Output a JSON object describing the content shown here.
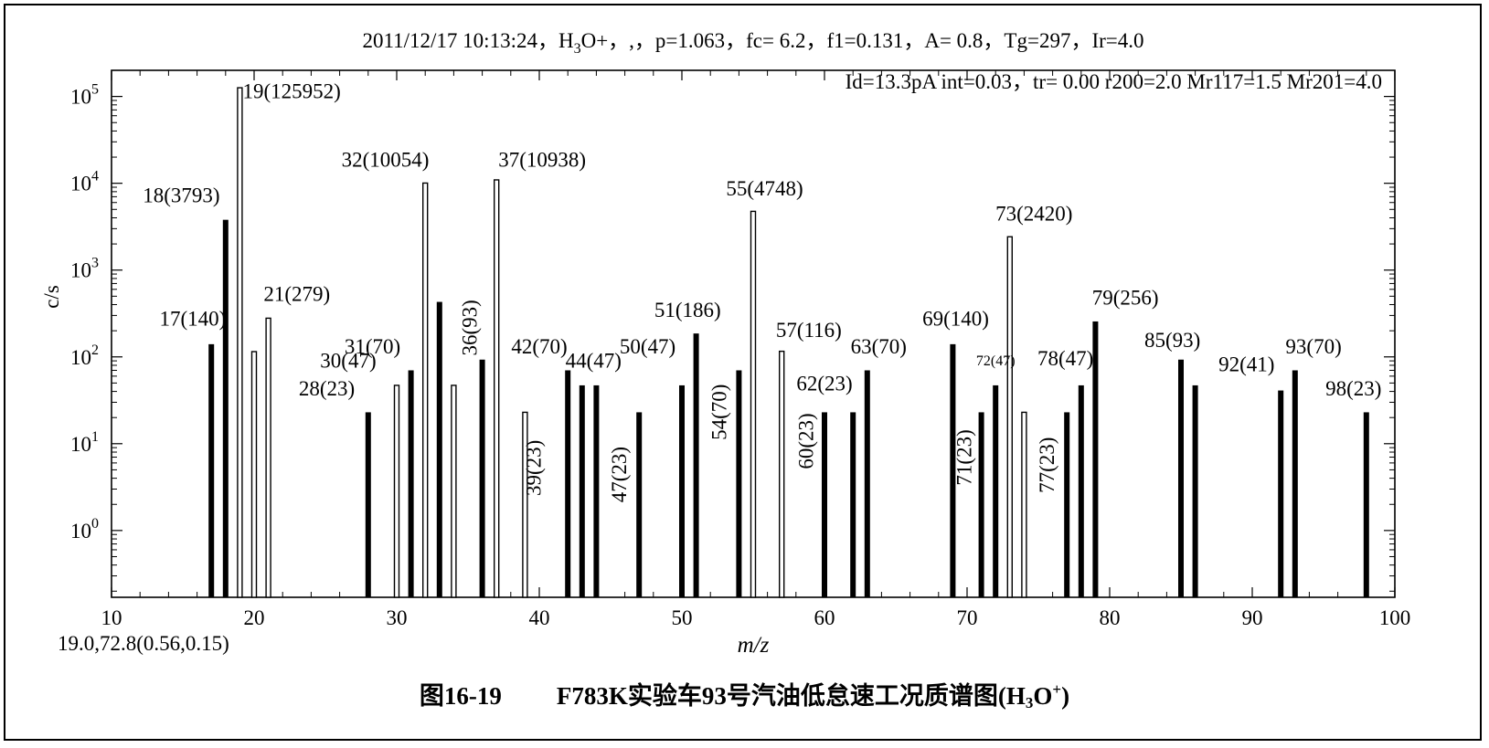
{
  "chart_data": {
    "type": "bar",
    "header_line1_parts": [
      "2011/12/17 10:13:24，H",
      "3",
      "O+，,，p=1.063，fc= 6.2，f1=0.131，A= 0.8，Tg=297，Ir=4.0"
    ],
    "header_line2": "Id=13.3pA int=0.03，tr= 0.00 r200=2.0 Mr117=1.5 Mr201=4.0",
    "xlabel": "m/z",
    "ylabel": "c/s",
    "yscale": "log",
    "xlim": [
      10,
      100
    ],
    "ylim": [
      0.17,
      200000
    ],
    "x_ticks": [
      10,
      20,
      30,
      40,
      50,
      60,
      70,
      80,
      90,
      100
    ],
    "y_ticks": [
      {
        "base": "10",
        "exp": "0",
        "value": 1
      },
      {
        "base": "10",
        "exp": "1",
        "value": 10
      },
      {
        "base": "10",
        "exp": "2",
        "value": 100
      },
      {
        "base": "10",
        "exp": "3",
        "value": 1000
      },
      {
        "base": "10",
        "exp": "4",
        "value": 10000
      },
      {
        "base": "10",
        "exp": "5",
        "value": 100000
      }
    ],
    "footnote": "19.0,72.8(0.56,0.15)",
    "peaks": [
      {
        "mz": 17,
        "value": 140,
        "style": "filled",
        "label": "17(140)",
        "lx": 15.7,
        "lv": 230,
        "anchor": "middle",
        "size": 23
      },
      {
        "mz": 18,
        "value": 3793,
        "style": "filled",
        "label": "18(3793)",
        "lx": 14.9,
        "lv": 6000,
        "anchor": "middle",
        "size": 23
      },
      {
        "mz": 19,
        "value": 125952,
        "style": "hollow",
        "label": "19(125952)",
        "lx": 19.2,
        "lv": 95000,
        "anchor": "start",
        "size": 23
      },
      {
        "mz": 20,
        "value": 115,
        "style": "hollow"
      },
      {
        "mz": 21,
        "value": 279,
        "style": "hollow",
        "label": "21(279)",
        "lx": 23.0,
        "lv": 440,
        "anchor": "middle",
        "size": 23
      },
      {
        "mz": 28,
        "value": 23,
        "style": "filled",
        "label": "28(23)",
        "lx": 25.1,
        "lv": 36,
        "anchor": "middle",
        "size": 23
      },
      {
        "mz": 30,
        "value": 47,
        "style": "hollow",
        "label": "30(47)",
        "lx": 26.6,
        "lv": 75,
        "anchor": "middle",
        "size": 23
      },
      {
        "mz": 31,
        "value": 70,
        "style": "filled",
        "label": "31(70)",
        "lx": 28.3,
        "lv": 110,
        "anchor": "middle",
        "size": 23
      },
      {
        "mz": 32,
        "value": 10054,
        "style": "hollow",
        "label": "32(10054)",
        "lx": 29.2,
        "lv": 15500,
        "anchor": "middle",
        "size": 23
      },
      {
        "mz": 33,
        "value": 430,
        "style": "filled"
      },
      {
        "mz": 34,
        "value": 47,
        "style": "hollow"
      },
      {
        "mz": 36,
        "value": 93,
        "style": "filled",
        "label": "36(93)",
        "lx": 35.6,
        "lv": 103,
        "anchor": "start",
        "size": 23,
        "rot": -90
      },
      {
        "mz": 37,
        "value": 10938,
        "style": "hollow",
        "label": "37(10938)",
        "lx": 40.2,
        "lv": 15500,
        "anchor": "middle",
        "size": 23
      },
      {
        "mz": 39,
        "value": 23,
        "style": "hollow",
        "label": "39(23)",
        "lx": 40.1,
        "lv": 2.5,
        "anchor": "start",
        "size": 23,
        "rot": -90
      },
      {
        "mz": 42,
        "value": 70,
        "style": "filled",
        "label": "42(70)",
        "lx": 40.0,
        "lv": 110,
        "anchor": "middle",
        "size": 23
      },
      {
        "mz": 43,
        "value": 47,
        "style": "filled"
      },
      {
        "mz": 44,
        "value": 47,
        "style": "filled",
        "label": "44(47)",
        "lx": 43.8,
        "lv": 75,
        "anchor": "middle",
        "size": 23
      },
      {
        "mz": 47,
        "value": 23,
        "style": "filled",
        "label": "47(23)",
        "lx": 46.1,
        "lv": 2.1,
        "anchor": "start",
        "size": 23,
        "rot": -90
      },
      {
        "mz": 50,
        "value": 47,
        "style": "filled",
        "label": "50(47)",
        "lx": 47.6,
        "lv": 110,
        "anchor": "middle",
        "size": 23
      },
      {
        "mz": 51,
        "value": 186,
        "style": "filled",
        "label": "51(186)",
        "lx": 50.4,
        "lv": 290,
        "anchor": "middle",
        "size": 23
      },
      {
        "mz": 54,
        "value": 70,
        "style": "filled",
        "label": "54(70)",
        "lx": 53.1,
        "lv": 11,
        "anchor": "start",
        "size": 23,
        "rot": -90
      },
      {
        "mz": 55,
        "value": 4748,
        "style": "hollow",
        "label": "55(4748)",
        "lx": 55.8,
        "lv": 7200,
        "anchor": "middle",
        "size": 23
      },
      {
        "mz": 57,
        "value": 116,
        "style": "hollow",
        "label": "57(116)",
        "lx": 58.9,
        "lv": 170,
        "anchor": "middle",
        "size": 23
      },
      {
        "mz": 60,
        "value": 23,
        "style": "filled",
        "label": "60(23)",
        "lx": 59.2,
        "lv": 5.1,
        "anchor": "start",
        "size": 23,
        "rot": -90
      },
      {
        "mz": 62,
        "value": 23,
        "style": "filled",
        "label": "62(23)",
        "lx": 60.0,
        "lv": 41,
        "anchor": "middle",
        "size": 23
      },
      {
        "mz": 63,
        "value": 70,
        "style": "filled",
        "label": "63(70)",
        "lx": 63.8,
        "lv": 110,
        "anchor": "middle",
        "size": 23
      },
      {
        "mz": 69,
        "value": 140,
        "style": "filled",
        "label": "69(140)",
        "lx": 69.2,
        "lv": 230,
        "anchor": "middle",
        "size": 23
      },
      {
        "mz": 71,
        "value": 23,
        "style": "filled",
        "label": "71(23)",
        "lx": 70.3,
        "lv": 3.3,
        "anchor": "start",
        "size": 23,
        "rot": -90
      },
      {
        "mz": 72,
        "value": 47,
        "style": "filled",
        "label": "72(47)",
        "lx": 72.0,
        "lv": 80,
        "anchor": "middle",
        "size": 16
      },
      {
        "mz": 73,
        "value": 2420,
        "style": "hollow",
        "label": "73(2420)",
        "lx": 74.7,
        "lv": 3700,
        "anchor": "middle",
        "size": 23
      },
      {
        "mz": 74,
        "value": 23,
        "style": "hollow"
      },
      {
        "mz": 77,
        "value": 23,
        "style": "filled",
        "label": "77(23)",
        "lx": 76.1,
        "lv": 2.7,
        "anchor": "start",
        "size": 23,
        "rot": -90
      },
      {
        "mz": 78,
        "value": 47,
        "style": "filled",
        "label": "78(47)",
        "lx": 76.9,
        "lv": 80,
        "anchor": "middle",
        "size": 23
      },
      {
        "mz": 79,
        "value": 256,
        "style": "filled",
        "label": "79(256)",
        "lx": 81.1,
        "lv": 400,
        "anchor": "middle",
        "size": 23
      },
      {
        "mz": 85,
        "value": 93,
        "style": "filled",
        "label": "85(93)",
        "lx": 84.4,
        "lv": 130,
        "anchor": "middle",
        "size": 23
      },
      {
        "mz": 86,
        "value": 47,
        "style": "filled"
      },
      {
        "mz": 92,
        "value": 41,
        "style": "filled",
        "label": "92(41)",
        "lx": 89.6,
        "lv": 68,
        "anchor": "middle",
        "size": 23
      },
      {
        "mz": 93,
        "value": 70,
        "style": "filled",
        "label": "93(70)",
        "lx": 94.3,
        "lv": 110,
        "anchor": "middle",
        "size": 23
      },
      {
        "mz": 98,
        "value": 23,
        "style": "filled",
        "label": "98(23)",
        "lx": 97.1,
        "lv": 36,
        "anchor": "middle",
        "size": 23
      }
    ]
  },
  "caption": {
    "figure_number": "图16-19",
    "title_main": "F783K实验车93号汽油低怠速工况质谱图(H",
    "title_sub": "3",
    "title_mid": "O",
    "title_sup": "+",
    "title_end": ")"
  }
}
